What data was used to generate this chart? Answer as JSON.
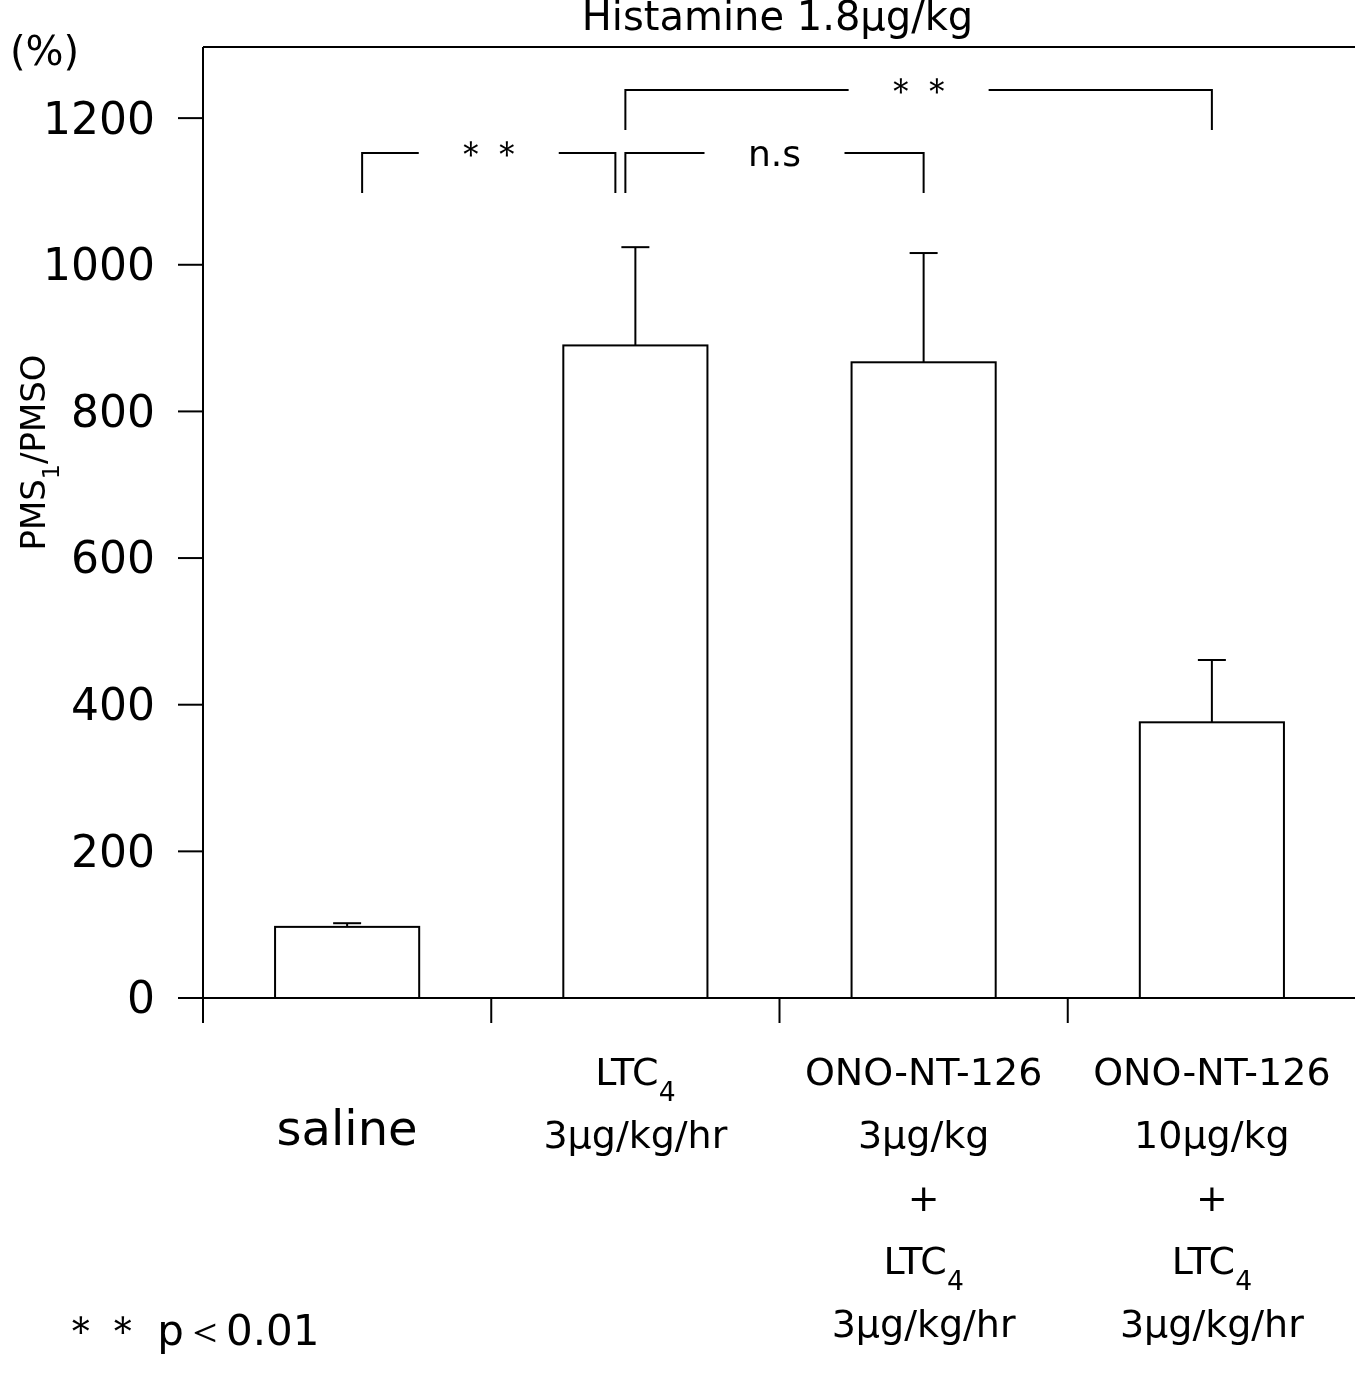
{
  "chart_data": {
    "type": "bar",
    "title": "Histamine 1.8μg/kg",
    "ylabel": "PMS$_{1}$/PMSO",
    "categories": [
      "saline",
      "LTC$_{4}$\n3μg/kg/hr",
      "ONO-NT-126\n3μg/kg\n+\nLTC$_{4}$\n3μg/kg/hr",
      "ONO-NT-126\n10μg/kg\n+\nLTC$_{4}$\n3μg/kg/hr"
    ],
    "values": [
      97,
      890,
      867,
      376
    ],
    "color": "#ffffff",
    "errors": [
      [
        97,
        102
      ],
      [
        890,
        1024
      ],
      [
        867,
        1016
      ],
      [
        376,
        461
      ]
    ],
    "ylim": [
      0,
      1297
    ],
    "yticks": [
      0,
      200,
      400,
      600,
      800,
      1000,
      1200
    ],
    "grid": false,
    "annotations": [
      "(%)",
      "＊＊",
      "n.s",
      "＊＊",
      "＊＊  p＜0.01"
    ]
  }
}
